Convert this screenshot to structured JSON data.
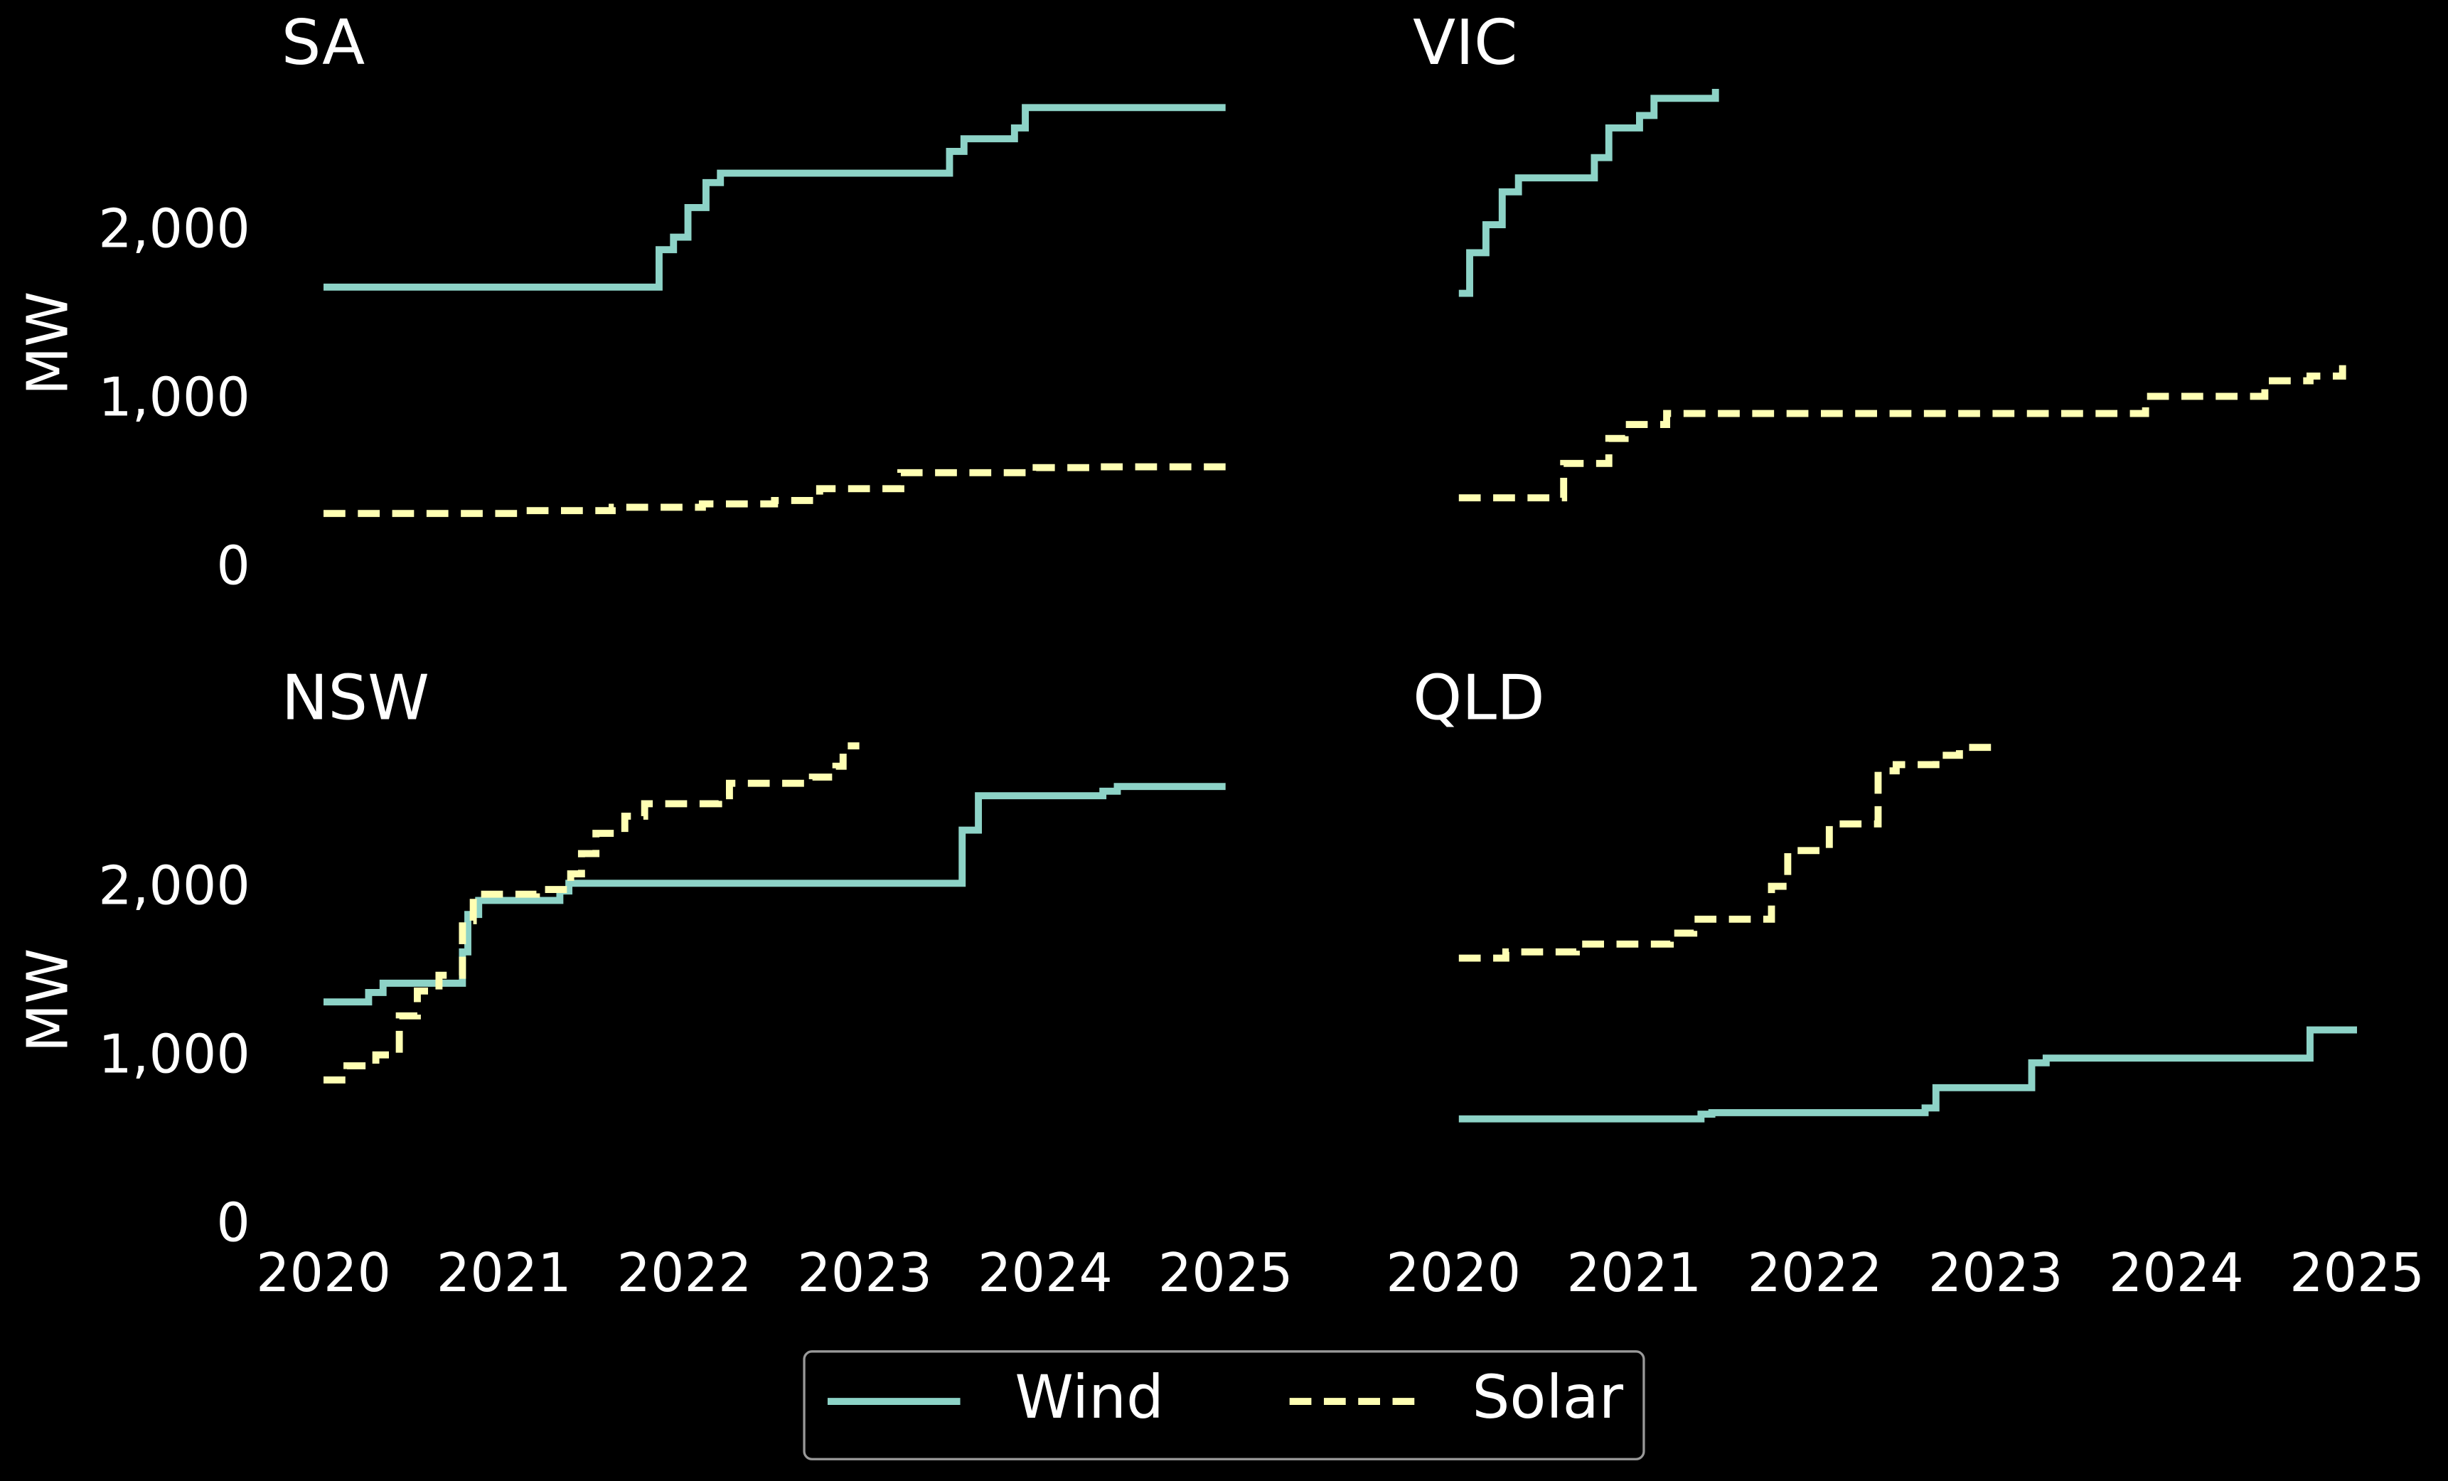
{
  "chart_data": [
    {
      "type": "line",
      "title": "SA",
      "ylabel": "MW",
      "xlim": [
        2020,
        2025
      ],
      "ylim": [
        0,
        2870
      ],
      "yticks": [
        0,
        {
          "value": 1000,
          "label": "1,000"
        },
        {
          "value": 2000,
          "label": "2,000"
        }
      ],
      "series": [
        {
          "name": "Wind",
          "color": "#8dd3c7",
          "style": "solid",
          "x": [
            2020.0,
            2021.86,
            2021.94,
            2022.02,
            2022.12,
            2022.2,
            2023.47,
            2023.55,
            2023.83,
            2023.89,
            2025.0
          ],
          "values": [
            1676,
            1898,
            1972,
            2148,
            2296,
            2352,
            2481,
            2556,
            2620,
            2741,
            2741
          ]
        },
        {
          "name": "Solar",
          "color": "#ffffb3",
          "style": "dashed",
          "x": [
            2020.0,
            2021.1,
            2021.6,
            2022.1,
            2022.5,
            2022.75,
            2023.2,
            2023.95,
            2024.3,
            2025.0
          ],
          "values": [
            333,
            350,
            370,
            390,
            410,
            480,
            575,
            605,
            610,
            610
          ]
        }
      ]
    },
    {
      "type": "line",
      "title": "VIC",
      "xlim": [
        2020,
        2025
      ],
      "ylim": [
        0,
        2870
      ],
      "series": [
        {
          "name": "Wind",
          "color": "#8dd3c7",
          "style": "solid",
          "x": [
            2020.03,
            2020.09,
            2020.18,
            2020.27,
            2020.36,
            2020.78,
            2020.86,
            2021.03,
            2021.11,
            2021.45
          ],
          "values": [
            1639,
            1880,
            2046,
            2241,
            2324,
            2444,
            2620,
            2694,
            2796,
            2852
          ]
        },
        {
          "name": "Solar",
          "color": "#ffffb3",
          "style": "dashed",
          "x": [
            2020.03,
            2020.61,
            2020.86,
            2020.95,
            2021.18,
            2023.83,
            2024.49,
            2024.74,
            2024.92
          ],
          "values": [
            426,
            630,
            778,
            861,
            926,
            1028,
            1120,
            1148,
            1213
          ]
        }
      ]
    },
    {
      "type": "line",
      "title": "NSW",
      "ylabel": "MW",
      "xlim": [
        2020,
        2025
      ],
      "ylim": [
        0,
        2870
      ],
      "xticks": [
        2020,
        2021,
        2022,
        2023,
        2024,
        2025
      ],
      "yticks": [
        0,
        {
          "value": 1000,
          "label": "1,000"
        },
        {
          "value": 2000,
          "label": "2,000"
        }
      ],
      "series": [
        {
          "name": "Wind",
          "color": "#8dd3c7",
          "style": "solid",
          "x": [
            2020.0,
            2020.25,
            2020.33,
            2020.77,
            2020.8,
            2020.86,
            2021.31,
            2021.36,
            2023.54,
            2023.63,
            2024.32,
            2024.4,
            2025.0
          ],
          "values": [
            1333,
            1389,
            1444,
            1630,
            1852,
            1935,
            1991,
            2037,
            2352,
            2556,
            2583,
            2611,
            2611
          ]
        },
        {
          "name": "Solar",
          "color": "#ffffb3",
          "style": "dashed",
          "x": [
            2020.0,
            2020.13,
            2020.29,
            2020.42,
            2020.52,
            2020.64,
            2020.77,
            2020.83,
            2021.18,
            2021.37,
            2021.43,
            2021.51,
            2021.67,
            2021.78,
            2022.19,
            2022.25,
            2022.71,
            2022.84,
            2022.88,
            2022.97
          ],
          "values": [
            870,
            954,
            1019,
            1250,
            1398,
            1491,
            1815,
            1972,
            2000,
            2093,
            2213,
            2333,
            2435,
            2509,
            2556,
            2630,
            2667,
            2731,
            2852,
            2852
          ]
        }
      ]
    },
    {
      "type": "line",
      "title": "QLD",
      "xlim": [
        2020,
        2025
      ],
      "ylim": [
        0,
        2870
      ],
      "xticks": [
        2020,
        2021,
        2022,
        2023,
        2024,
        2025
      ],
      "series": [
        {
          "name": "Wind",
          "color": "#8dd3c7",
          "style": "solid",
          "x": [
            2020.03,
            2021.37,
            2021.43,
            2022.61,
            2022.67,
            2023.2,
            2023.28,
            2024.74,
            2025.0
          ],
          "values": [
            639,
            667,
            676,
            704,
            824,
            972,
            1000,
            1167,
            1167
          ]
        },
        {
          "name": "Solar",
          "color": "#ffffb3",
          "style": "dashed",
          "x": [
            2020.03,
            2020.29,
            2020.68,
            2021.2,
            2021.33,
            2021.76,
            2021.85,
            2022.08,
            2022.35,
            2022.45,
            2022.67,
            2022.8,
            2022.99
          ],
          "values": [
            1593,
            1630,
            1676,
            1741,
            1824,
            2019,
            2231,
            2389,
            2704,
            2741,
            2796,
            2843,
            2843
          ]
        }
      ]
    }
  ]
}
